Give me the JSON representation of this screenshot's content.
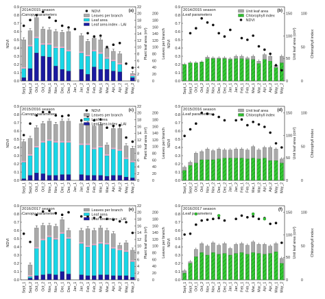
{
  "chart_data": [
    {
      "panel": "(a)",
      "type": "bar",
      "season_label": "2014/2015 season",
      "params_label": "Canopy parameters",
      "left_axis_label": "NDVI",
      "left_ticks": [
        "0.0",
        "0.1",
        "0.2",
        "0.3",
        "0.4",
        "0.5",
        "0.6",
        "0.7",
        "0.8",
        "0.9"
      ],
      "left_lim": [
        0,
        0.9
      ],
      "right_axis_label": "Plant leaf area (m²)",
      "right_ticks": [
        "0",
        "2",
        "4",
        "6",
        "8",
        "10",
        "12",
        "14",
        "16",
        "18",
        "20",
        "22"
      ],
      "right_lim": [
        0,
        22
      ],
      "right2_axis_label": "Leaves per branch",
      "right2_ticks": [
        "0",
        "20",
        "40",
        "60",
        "80",
        "100",
        "120",
        "140",
        "160",
        "180",
        "200"
      ],
      "categories": [
        "Sept_1",
        "Sept_2",
        "Oct_1",
        "Oct_2",
        "Nov_1",
        "Nov_2",
        "Dec_1",
        "Dec_2",
        "Jan_1",
        "Jan_2",
        "Feb_1",
        "Feb_2",
        "Mar_1",
        "Mar_2",
        "Apr_1",
        "Apr_2",
        "May_1",
        "May_2"
      ],
      "legend": [
        "NDVI",
        "Leaves per branch",
        "Leaf area",
        "Leaf area index - LAI"
      ],
      "series": [
        {
          "name": "Leaves per branch",
          "values": [
            0.5,
            0.61,
            0.77,
            0.63,
            0.62,
            0.6,
            0.59,
            0.6,
            0,
            0.55,
            0.48,
            0.52,
            0.5,
            0.4,
            0.36,
            0.33,
            0,
            0.09
          ]
        },
        {
          "name": "Leaf area",
          "values": [
            0.15,
            0.42,
            0.52,
            0.44,
            0.44,
            0.4,
            0.4,
            0.36,
            0,
            0.34,
            0.3,
            0.36,
            0.33,
            0.27,
            0.24,
            0.2,
            0,
            0.06
          ]
        },
        {
          "name": "Leaf area index - LAI",
          "values": [
            0.04,
            0.15,
            0.34,
            0.3,
            0.29,
            0.18,
            0.14,
            0.12,
            0,
            0.14,
            0.08,
            0.17,
            0.14,
            0.14,
            0.12,
            0.11,
            0,
            0.04
          ]
        }
      ],
      "ndvi": [
        0.67,
        0.74,
        0.8,
        0.84,
        0.77,
        0.73,
        0.67,
        0.65,
        0.63,
        null,
        0.58,
        0.54,
        0.55,
        0.41,
        0.44,
        0.46,
        0.21,
        0.16
      ]
    },
    {
      "panel": "(b)",
      "type": "bar",
      "season_label": "2014/2015 season",
      "params_label": "Leaf parameters",
      "left_axis_label": "NDVI",
      "left_ticks": [
        "0.0",
        "0.1",
        "0.2",
        "0.3",
        "0.4",
        "0.5",
        "0.6",
        "0.7",
        "0.8",
        "0.9"
      ],
      "left_lim": [
        0,
        0.9
      ],
      "right_axis_label": "Unit leaf area (cm²)",
      "right_ticks": [
        "0",
        "50",
        "100",
        "150"
      ],
      "right_lim": [
        0,
        165
      ],
      "right2_axis_label": "Chlorophyll index",
      "right2_ticks": [
        "0",
        "50",
        "100"
      ],
      "categories": [
        "Sept_1",
        "Sept_2",
        "Oct_1",
        "Oct_2",
        "Nov_1",
        "Nov_2",
        "Dec_1",
        "Dec_2",
        "Jan_1",
        "Jan_2",
        "Feb_1",
        "Feb_2",
        "Mar_1",
        "Mar_2",
        "Apr_1",
        "Apr_2",
        "May_1",
        "May_2"
      ],
      "legend": [
        "Unit leaf area",
        "Chlorophyll index",
        "NDVI"
      ],
      "series": [
        {
          "name": "Unit leaf area",
          "values": [
            0,
            0,
            0,
            0,
            0,
            0,
            0,
            0,
            0,
            0,
            0,
            0,
            0,
            0,
            0,
            0,
            0,
            0
          ]
        },
        {
          "name": "Chlorophyll index",
          "values": [
            0,
            0,
            0,
            0,
            0,
            0,
            0,
            0,
            0,
            0,
            0,
            0,
            0,
            0,
            0,
            0,
            0,
            0
          ]
        }
      ],
      "ndvi": []
    },
    {
      "panel": "(c)",
      "type": "bar",
      "season_label": "2015/2016 season",
      "params_label": "Canopy parameters",
      "left_axis_label": "NDVI",
      "left_ticks": [
        "0.0",
        "0.1",
        "0.2",
        "0.3",
        "0.4",
        "0.5",
        "0.6",
        "0.7",
        "0.8",
        "0.9"
      ],
      "left_lim": [
        0,
        0.9
      ],
      "right_axis_label": "Plant leaf area (m²)",
      "right_ticks": [
        "0",
        "2",
        "4",
        "6",
        "8",
        "10",
        "12",
        "14",
        "16",
        "18",
        "20",
        "22"
      ],
      "right_lim": [
        0,
        22
      ],
      "right2_axis_label": "Leaves per branch",
      "right2_ticks": [
        "0",
        "20",
        "40",
        "60",
        "80",
        "100",
        "120",
        "140",
        "160",
        "180",
        "200"
      ],
      "categories": [
        "Sept_1",
        "Sept_2",
        "Oct_1",
        "Oct_2",
        "Nov_1",
        "Nov_2",
        "Dec_1",
        "Dec_2",
        "Jan_1",
        "Jan_2",
        "Feb_1",
        "Feb_2",
        "Mar_1",
        "Mar_2",
        "Apr_1",
        "Apr_2",
        "May_1",
        "May_2"
      ],
      "legend": [
        "NDVI",
        "Leaves per branch",
        "Leaf area",
        "Leaf area index - LAI"
      ],
      "series": [
        {
          "name": "Leaves per branch",
          "values": [
            0.47,
            0.51,
            0.64,
            0.69,
            0.72,
            0.68,
            0.72,
            0.72,
            0,
            0.69,
            0.69,
            0.66,
            0.68,
            0.43,
            0.63,
            0.63,
            0.42,
            0.39
          ]
        },
        {
          "name": "Leaf area",
          "values": [
            0.22,
            0.3,
            0.4,
            0.46,
            0.48,
            0.46,
            0.46,
            0.46,
            0,
            0.43,
            0.43,
            0.38,
            0.4,
            0.3,
            0.38,
            0.36,
            0.26,
            0.22
          ]
        },
        {
          "name": "Leaf area index - LAI",
          "values": [
            0.02,
            0.06,
            0.09,
            0.08,
            0.06,
            0.06,
            0.07,
            0.07,
            0,
            0.07,
            0.06,
            0.06,
            0.06,
            0.05,
            0.06,
            0.06,
            0.04,
            0.03
          ]
        }
      ],
      "ndvi": [
        0.55,
        0.69,
        0.79,
        0.83,
        0.83,
        0.79,
        0.78,
        0.79,
        null,
        0.73,
        0.78,
        0.73,
        0.74,
        0.64,
        0.66,
        0.67,
        0.52,
        0.47
      ]
    },
    {
      "panel": "(d)",
      "type": "bar",
      "season_label": "2015/2016 season",
      "params_label": "Leaf parameters",
      "left_axis_label": "NDVI",
      "left_ticks": [
        "0.0",
        "0.1",
        "0.2",
        "0.3",
        "0.4",
        "0.5",
        "0.6",
        "0.7",
        "0.8",
        "0.9"
      ],
      "left_lim": [
        0,
        0.9
      ],
      "right_axis_label": "Unit leaf area (cm²)",
      "right_ticks": [
        "0",
        "50",
        "100",
        "150"
      ],
      "right_lim": [
        0,
        165
      ],
      "right2_axis_label": "Chlorophyll index",
      "right2_ticks": [
        "0",
        "50",
        "100"
      ],
      "categories": [
        "Sept_1",
        "Sept_2",
        "Oct_1",
        "Oct_2",
        "Nov_1",
        "Nov_2",
        "Dec_1",
        "Dec_2",
        "Jan_1",
        "Jan_2",
        "Feb_1",
        "Feb_2",
        "Mar_1",
        "Mar_2",
        "Apr_1",
        "Apr_2",
        "May_1",
        "May_2"
      ],
      "legend": [
        "Unit leaf area",
        "Chlorophyll index"
      ],
      "series": [
        {
          "name": "Unit leaf area",
          "values": [
            0,
            0,
            0,
            0,
            0,
            0,
            0,
            0,
            0,
            0,
            0,
            0,
            0,
            0,
            0,
            0,
            0,
            0
          ]
        },
        {
          "name": "Chlorophyll index",
          "values": [
            0,
            0,
            0,
            0,
            0,
            0,
            0,
            0,
            0,
            0,
            0,
            0,
            0,
            0,
            0,
            0,
            0,
            0
          ]
        }
      ],
      "ndvi": []
    },
    {
      "panel": "(e)",
      "type": "bar",
      "season_label": "2016/2017 season",
      "params_label": "Canopy parameters",
      "left_axis_label": "NDVI",
      "left_ticks": [
        "0.0",
        "0.1",
        "0.2",
        "0.3",
        "0.4",
        "0.5",
        "0.6",
        "0.7",
        "0.8",
        "0.9"
      ],
      "left_lim": [
        0,
        0.9
      ],
      "right_axis_label": "Plant leaf area (m²)",
      "right_ticks": [
        "0",
        "2",
        "4",
        "6",
        "8",
        "10",
        "12",
        "14",
        "16",
        "18",
        "20",
        "22"
      ],
      "right_lim": [
        0,
        22
      ],
      "right2_axis_label": "Leaves per branch",
      "right2_ticks": [
        "0",
        "20",
        "40",
        "60",
        "80",
        "100",
        "120",
        "140",
        "160",
        "180",
        "200"
      ],
      "categories": [
        "Sept_1",
        "Sept_2",
        "Oct_1",
        "Oct_2",
        "Nov_1",
        "Nov_2",
        "Dec_1",
        "Dec_2",
        "Jan_1",
        "Jan_2",
        "Feb_1",
        "Feb_2",
        "Mar_1",
        "Mar_2",
        "Apr_1",
        "Apr_2",
        "May_1",
        "May_2"
      ],
      "legend": [
        "Leaves per branch",
        "Leaf area",
        "Leaf area index - LAI"
      ],
      "series": [
        {
          "name": "Leaves per branch",
          "values": [
            0,
            0.18,
            0.63,
            0.66,
            0.66,
            0.65,
            0.73,
            0.6,
            0,
            0.6,
            0.62,
            0.6,
            0.63,
            0.6,
            0.56,
            0.42,
            0.45,
            0.36
          ]
        },
        {
          "name": "Leaf area",
          "values": [
            0,
            0.04,
            0.38,
            0.48,
            0.52,
            0.49,
            0.56,
            0.5,
            0,
            0.44,
            0.4,
            0.42,
            0.44,
            0.43,
            0.38,
            0.36,
            0.34,
            0.22
          ]
        },
        {
          "name": "Leaf area index - LAI",
          "values": [
            0,
            0.02,
            0.05,
            0.06,
            0.07,
            0.06,
            0.1,
            0.07,
            0,
            0.06,
            0.05,
            0.05,
            0.06,
            0.06,
            0.05,
            0.05,
            0.05,
            0.03
          ]
        }
      ],
      "ndvi": [
        0.56,
        0.46,
        0.79,
        0.83,
        0.84,
        0.81,
        0.79,
        0.82,
        null,
        0.77,
        0.77,
        0.75,
        0.76,
        0.74,
        0.73,
        0.71,
        0.7,
        0.57
      ]
    },
    {
      "panel": "(f)",
      "type": "bar",
      "season_label": "2016/2017 season",
      "params_label": "Leaf parameters",
      "left_axis_label": "NDVI",
      "left_ticks": [
        "0.0",
        "0.1",
        "0.2",
        "0.3",
        "0.4",
        "0.5",
        "0.6",
        "0.7",
        "0.8",
        "0.9"
      ],
      "left_lim": [
        0,
        0.9
      ],
      "right_axis_label": "Unit leaf area (cm²)",
      "right_ticks": [
        "0",
        "50",
        "100",
        "150"
      ],
      "right_lim": [
        0,
        165
      ],
      "right2_axis_label": "Chlorophyll index",
      "right2_ticks": [
        "0",
        "50",
        "100"
      ],
      "categories": [
        "Sept_1",
        "Sept_2",
        "Oct_1",
        "Oct_2",
        "Nov_1",
        "Nov_2",
        "Dec_1",
        "Dec_2",
        "Jan_1",
        "Jan_2",
        "Feb_1",
        "Feb_2",
        "Mar_1",
        "Mar_2",
        "Apr_1",
        "Apr_2",
        "May_1",
        "May_2"
      ],
      "legend": [],
      "series": [
        {
          "name": "Unit leaf area",
          "values": [
            0,
            0,
            0,
            0,
            0,
            0,
            0,
            0,
            0,
            0,
            0,
            0,
            0,
            0,
            0,
            0,
            0,
            0
          ]
        },
        {
          "name": "Chlorophyll index",
          "values": [
            0,
            0,
            0,
            0,
            0,
            0,
            0,
            0,
            0,
            0,
            0,
            0,
            0,
            0,
            0,
            0,
            0,
            0
          ]
        }
      ],
      "ndvi": []
    }
  ],
  "leaf_panels": {
    "b": {
      "unit_leaf_area": [
        0.2,
        0.22,
        0.22,
        0.23,
        0.29,
        0.28,
        0.28,
        0.28,
        0.27,
        0.3,
        0.3,
        0.28,
        0.3,
        0.24,
        0.32,
        0.3,
        0.19,
        0.3
      ],
      "chlorophyll": [
        0.2,
        0.22,
        0.22,
        0.23,
        0.27,
        0.27,
        0.27,
        0.27,
        0.26,
        0.27,
        0.27,
        0.26,
        0.26,
        0.21,
        0.26,
        0.24,
        0.16,
        0.22
      ],
      "ndvi": [
        null,
        0.58,
        0.64,
        0.76,
        0.71,
        0.68,
        0.58,
        0.54,
        0.62,
        null,
        0.52,
        0.5,
        0.55,
        0.42,
        0.38,
        0.33,
        0.19,
        0.13
      ]
    },
    "d": {
      "unit_leaf_area": [
        0.16,
        0.22,
        0.33,
        0.35,
        0.38,
        0.36,
        0.38,
        0.37,
        0.37,
        0.38,
        0.38,
        0.37,
        0.41,
        0.37,
        0.4,
        0.4,
        0.38,
        0.26
      ],
      "chlorophyll": [
        0.12,
        0.18,
        0.21,
        0.25,
        0.25,
        0.25,
        0.26,
        0.27,
        0.27,
        0.27,
        0.27,
        0.26,
        0.27,
        0.26,
        0.27,
        0.24,
        0.24,
        0.21
      ],
      "ndvi": [
        0.54,
        0.62,
        0.69,
        0.82,
        0.81,
        0.8,
        0.77,
        0.73,
        null,
        0.73,
        0.74,
        0.67,
        0.71,
        0.68,
        0.65,
        0.58,
        0.45,
        0.4
      ]
    },
    "f": {
      "unit_leaf_area": [
        0.11,
        0.22,
        0.37,
        0.44,
        0.41,
        0.45,
        0.42,
        0.44,
        0.38,
        0.43,
        0.44,
        0.42,
        0.46,
        0.43,
        0.43,
        0.41,
        0.44,
        0.26
      ],
      "chlorophyll": [
        0.08,
        0.2,
        0.28,
        0.33,
        0.3,
        0.33,
        0.31,
        0.32,
        0.3,
        0.32,
        0.33,
        0.31,
        0.33,
        0.32,
        0.31,
        0.32,
        0.34,
        0.2
      ],
      "ndvi": [
        0.55,
        0.56,
        0.67,
        0.72,
        0.73,
        0.74,
        0.75,
        0.72,
        null,
        0.74,
        0.78,
        0.76,
        0.77,
        0.74,
        0.75,
        0.68,
        0.69,
        0.45
      ],
      "green_dots": [
        null,
        null,
        0.8,
        null,
        null,
        null,
        0.78,
        null,
        null,
        null,
        null,
        null,
        0.8,
        null,
        0.74,
        null,
        null,
        null
      ]
    }
  },
  "colors": {
    "gray": "#a9a9a9",
    "pink": "#e9a8c8",
    "cyan": "#19d6e6",
    "navy": "#1a1aa0",
    "green": "#32c832",
    "green_dark": "#1e8a1e"
  }
}
